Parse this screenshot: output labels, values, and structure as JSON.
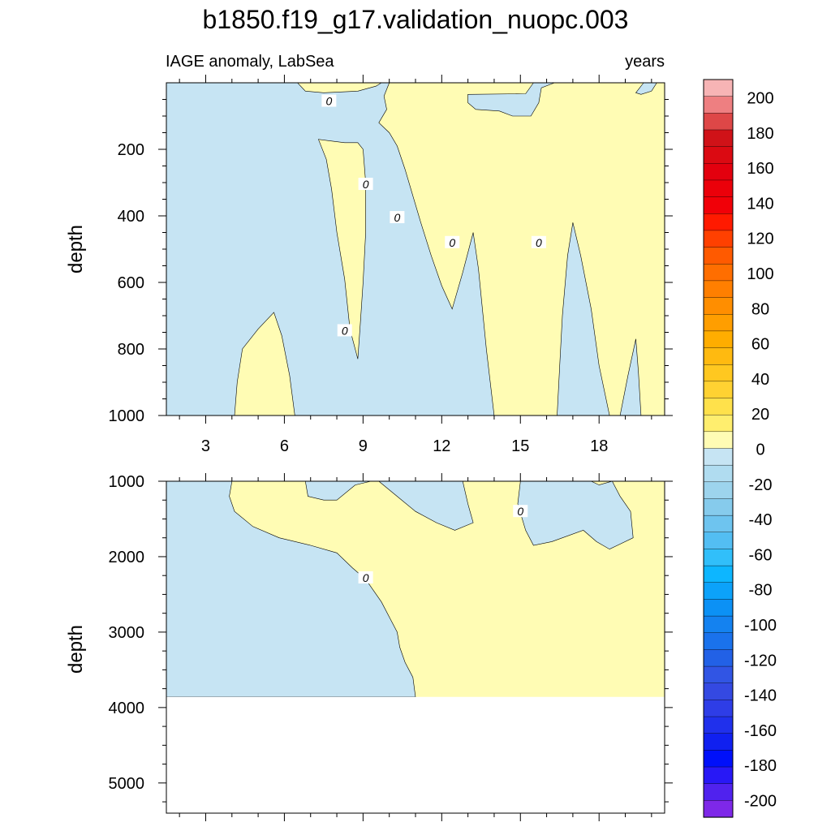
{
  "title": "b1850.f19_g17.validation_nuopc.003",
  "panel_left_label": "IAGE anomaly, LabSea",
  "panel_right_label": "years",
  "colors": {
    "positive_fill": "#FFFCB4",
    "negative_fill": "#C6E4F3",
    "missing_fill": "#FFFFFF"
  },
  "chart_data": [
    {
      "type": "heatmap",
      "panel": "upper",
      "ylabel": "depth",
      "xlabel": "",
      "xlim": [
        1.5,
        20.5
      ],
      "ylim": [
        1000,
        0
      ],
      "x_ticks": [
        "3",
        "6",
        "9",
        "12",
        "15",
        "18"
      ],
      "y_ticks": [
        "200",
        "400",
        "600",
        "800",
        "1000"
      ],
      "contour_labels": [
        {
          "text": "0",
          "x": 7.7,
          "y": 55
        },
        {
          "text": "0",
          "x": 9.1,
          "y": 305
        },
        {
          "text": "0",
          "x": 10.3,
          "y": 405
        },
        {
          "text": "0",
          "x": 12.4,
          "y": 480
        },
        {
          "text": "0",
          "x": 15.7,
          "y": 480
        },
        {
          "text": "0",
          "x": 8.3,
          "y": 745
        }
      ],
      "regions": [
        {
          "sign": "negative",
          "points": [
            [
              1.5,
              0
            ],
            [
              6.5,
              0
            ],
            [
              6.8,
              25
            ],
            [
              7.5,
              30
            ],
            [
              8.8,
              25
            ],
            [
              9.5,
              10
            ],
            [
              9.7,
              0
            ],
            [
              10.0,
              0
            ],
            [
              9.8,
              40
            ],
            [
              9.9,
              80
            ],
            [
              9.6,
              120
            ],
            [
              10.0,
              150
            ],
            [
              10.3,
              190
            ],
            [
              10.6,
              260
            ],
            [
              10.9,
              340
            ],
            [
              11.2,
              420
            ],
            [
              11.6,
              520
            ],
            [
              12.0,
              610
            ],
            [
              12.4,
              680
            ],
            [
              12.8,
              570
            ],
            [
              13.2,
              450
            ],
            [
              13.4,
              560
            ],
            [
              13.7,
              800
            ],
            [
              14.0,
              1000
            ],
            [
              1.5,
              1000
            ]
          ]
        },
        {
          "sign": "positive",
          "points": [
            [
              4.1,
              1000
            ],
            [
              4.2,
              900
            ],
            [
              4.4,
              800
            ],
            [
              5.0,
              740
            ],
            [
              5.6,
              690
            ],
            [
              5.9,
              760
            ],
            [
              6.2,
              880
            ],
            [
              6.4,
              1000
            ]
          ]
        },
        {
          "sign": "positive",
          "points": [
            [
              7.3,
              170
            ],
            [
              7.6,
              230
            ],
            [
              7.8,
              320
            ],
            [
              8.0,
              450
            ],
            [
              8.3,
              590
            ],
            [
              8.5,
              740
            ],
            [
              8.8,
              830
            ],
            [
              8.9,
              720
            ],
            [
              9.0,
              600
            ],
            [
              9.1,
              450
            ],
            [
              9.1,
              300
            ],
            [
              9.0,
              200
            ],
            [
              8.8,
              180
            ],
            [
              8.3,
              180
            ],
            [
              7.8,
              175
            ]
          ]
        },
        {
          "sign": "negative",
          "points": [
            [
              16.4,
              1000
            ],
            [
              16.5,
              850
            ],
            [
              16.6,
              700
            ],
            [
              16.8,
              520
            ],
            [
              17.0,
              420
            ],
            [
              17.3,
              520
            ],
            [
              17.7,
              680
            ],
            [
              18.0,
              850
            ],
            [
              18.4,
              1000
            ]
          ]
        },
        {
          "sign": "negative",
          "points": [
            [
              18.8,
              1000
            ],
            [
              19.1,
              880
            ],
            [
              19.4,
              770
            ],
            [
              19.5,
              870
            ],
            [
              19.6,
              1000
            ]
          ]
        },
        {
          "sign": "negative",
          "points": [
            [
              13.0,
              35
            ],
            [
              15.2,
              33
            ],
            [
              15.5,
              0
            ],
            [
              16.3,
              0
            ],
            [
              15.8,
              15
            ],
            [
              15.7,
              60
            ],
            [
              15.4,
              100
            ],
            [
              14.7,
              100
            ],
            [
              14.2,
              85
            ],
            [
              13.3,
              80
            ],
            [
              13.0,
              60
            ]
          ]
        },
        {
          "sign": "negative",
          "points": [
            [
              19.4,
              30
            ],
            [
              19.7,
              0
            ],
            [
              20.2,
              0
            ],
            [
              20.0,
              25
            ],
            [
              19.6,
              35
            ]
          ]
        }
      ]
    },
    {
      "type": "heatmap",
      "panel": "lower",
      "ylabel": "depth",
      "xlabel": "",
      "xlim": [
        1.5,
        20.5
      ],
      "ylim": [
        5400,
        1000
      ],
      "x_ticks": [],
      "y_ticks": [
        "1000",
        "2000",
        "3000",
        "4000",
        "5000"
      ],
      "missing_below": 3860,
      "contour_labels": [
        {
          "text": "0",
          "x": 9.1,
          "y": 2280
        },
        {
          "text": "0",
          "x": 15.0,
          "y": 1400
        }
      ],
      "regions": [
        {
          "sign": "negative",
          "points": [
            [
              1.5,
              1000
            ],
            [
              4.0,
              1000
            ],
            [
              3.9,
              1200
            ],
            [
              4.1,
              1400
            ],
            [
              4.8,
              1600
            ],
            [
              5.8,
              1750
            ],
            [
              7.0,
              1850
            ],
            [
              8.0,
              1950
            ],
            [
              8.6,
              2150
            ],
            [
              9.1,
              2300
            ],
            [
              9.7,
              2600
            ],
            [
              10.3,
              3000
            ],
            [
              10.4,
              3200
            ],
            [
              10.6,
              3400
            ],
            [
              10.9,
              3600
            ],
            [
              11.0,
              3860
            ],
            [
              1.5,
              3860
            ]
          ]
        },
        {
          "sign": "negative",
          "points": [
            [
              6.8,
              1000
            ],
            [
              6.9,
              1200
            ],
            [
              7.5,
              1250
            ],
            [
              8.0,
              1250
            ],
            [
              8.7,
              1050
            ],
            [
              9.3,
              1000
            ]
          ]
        },
        {
          "sign": "negative",
          "points": [
            [
              9.6,
              1000
            ],
            [
              10.3,
              1200
            ],
            [
              11.0,
              1400
            ],
            [
              11.8,
              1550
            ],
            [
              12.5,
              1650
            ],
            [
              13.2,
              1550
            ],
            [
              13.0,
              1300
            ],
            [
              12.8,
              1000
            ]
          ]
        },
        {
          "sign": "negative",
          "points": [
            [
              15.0,
              1000
            ],
            [
              14.9,
              1300
            ],
            [
              15.2,
              1650
            ],
            [
              15.5,
              1850
            ],
            [
              16.2,
              1800
            ],
            [
              17.4,
              1650
            ],
            [
              17.9,
              1800
            ],
            [
              18.4,
              1900
            ],
            [
              19.3,
              1750
            ],
            [
              19.2,
              1400
            ],
            [
              18.8,
              1200
            ],
            [
              18.5,
              1000
            ],
            [
              18.0,
              1050
            ],
            [
              17.7,
              1000
            ]
          ]
        }
      ]
    }
  ],
  "colorbar": {
    "labels": [
      "200",
      "180",
      "160",
      "140",
      "120",
      "100",
      "80",
      "60",
      "40",
      "20",
      "0",
      "-20",
      "-40",
      "-60",
      "-80",
      "-100",
      "-120",
      "-140",
      "-160",
      "-180",
      "-200"
    ],
    "colors": [
      "#F7B4B5",
      "#EE7F81",
      "#DE4747",
      "#D01218",
      "#DB0A12",
      "#E3000E",
      "#EB000A",
      "#F10008",
      "#FF1A00",
      "#FF4000",
      "#FF5A00",
      "#FF6E00",
      "#FF7F00",
      "#FF8E00",
      "#FF9E00",
      "#FFAD00",
      "#FFBA10",
      "#FFC820",
      "#FFD232",
      "#FFE14B",
      "#FFEE6E",
      "#FFFCB4",
      "#C6E4F3",
      "#B0DCF0",
      "#9DD4ED",
      "#86CBEC",
      "#6EC4EF",
      "#53BEF3",
      "#31BFFA",
      "#0DB6FF",
      "#0CA2FA",
      "#0C91F5",
      "#1482F0",
      "#1A72EC",
      "#2261E6",
      "#3155E4",
      "#3449E2",
      "#2E3DE7",
      "#2030EC",
      "#1020F0",
      "#0010FA",
      "#2818F6",
      "#5022EE",
      "#7E28E8"
    ]
  }
}
